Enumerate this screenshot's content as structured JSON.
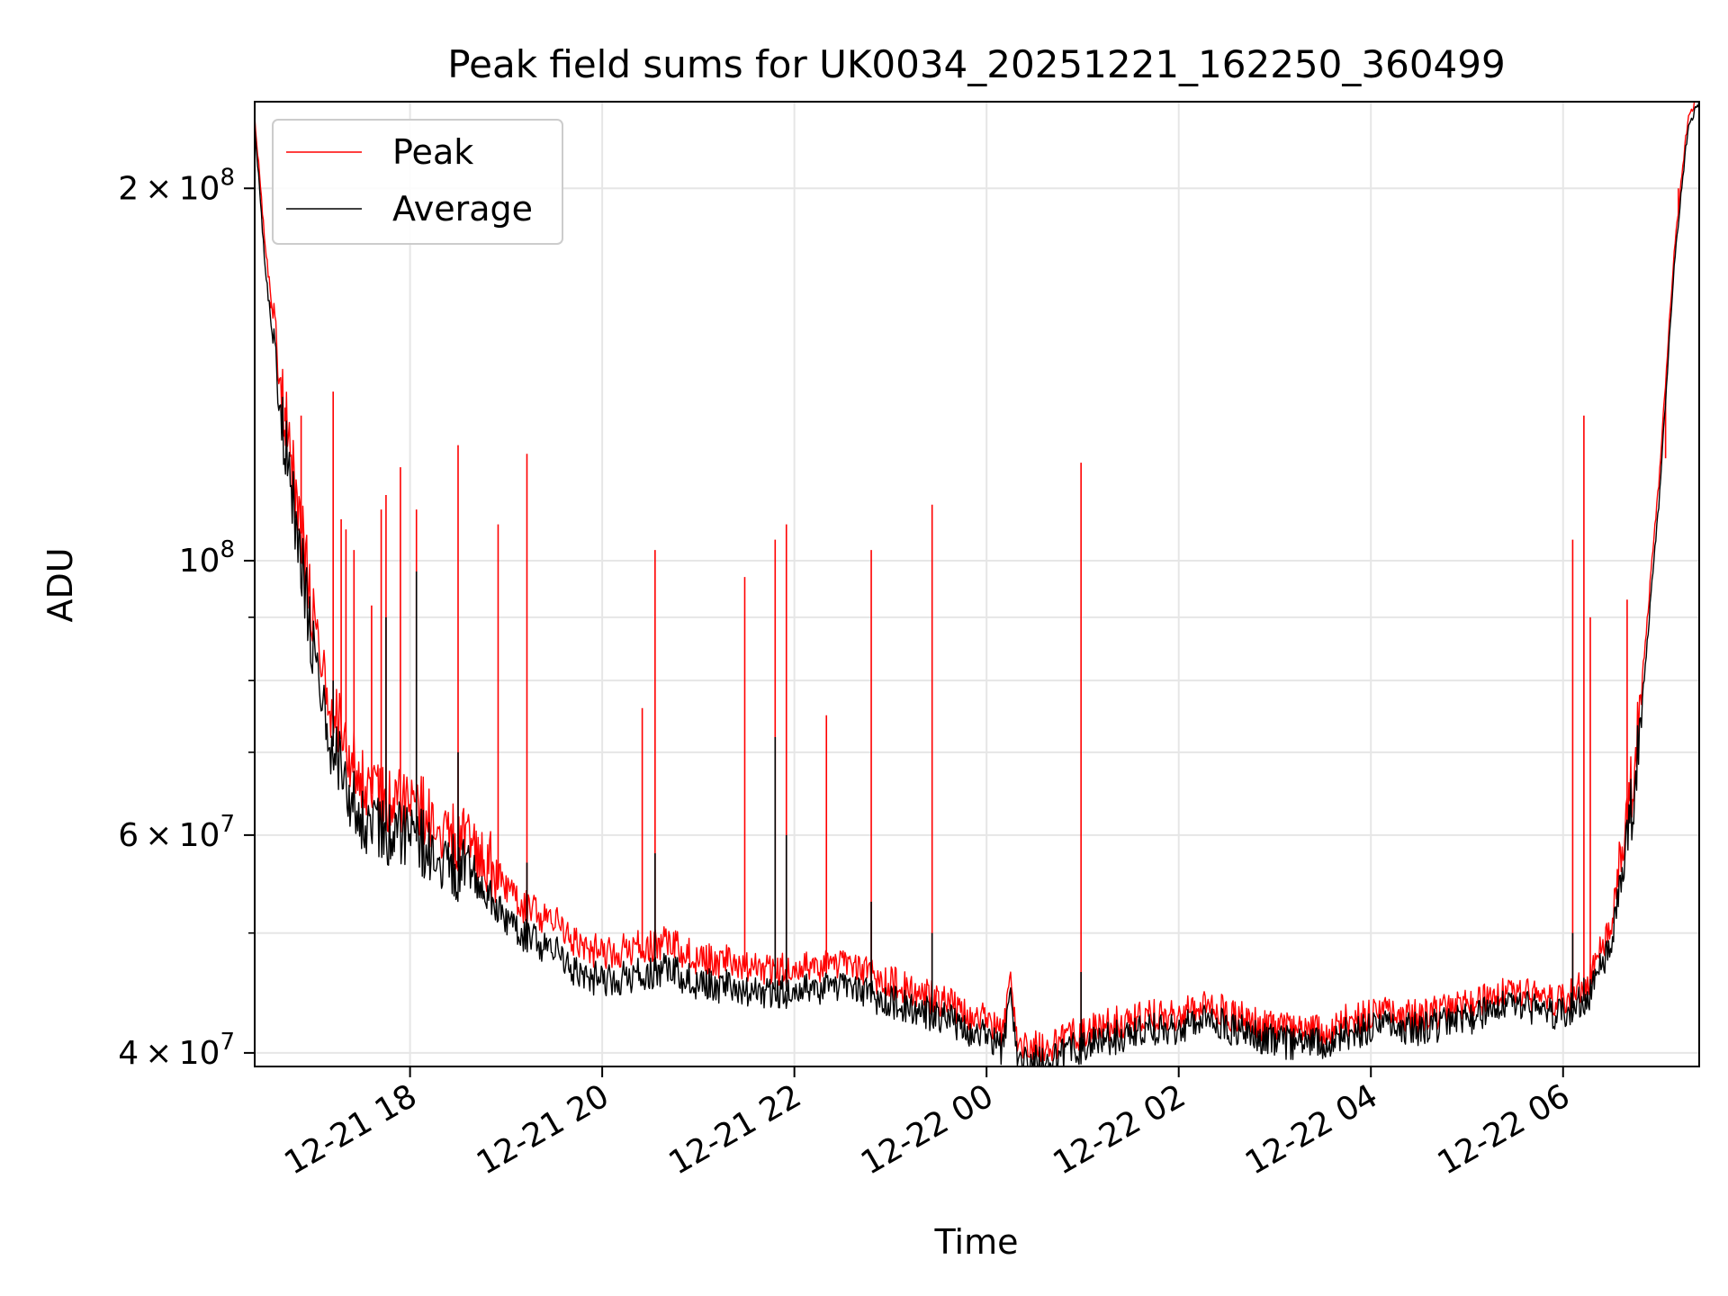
{
  "chart_data": {
    "type": "line",
    "title": "Peak field sums for UK0034_20251221_162250_360499",
    "xlabel": "Time",
    "ylabel": "ADU",
    "yscale": "log",
    "grid": true,
    "legend_position": "top-left",
    "xlim": [
      "2025-12-21 16:23",
      "2025-12-22 07:25"
    ],
    "ylim": [
      39000000,
      235000000
    ],
    "x_ticks": [
      {
        "value": "2025-12-21 18:00",
        "label": "12-21 18"
      },
      {
        "value": "2025-12-21 20:00",
        "label": "12-21 20"
      },
      {
        "value": "2025-12-21 22:00",
        "label": "12-21 22"
      },
      {
        "value": "2025-12-22 00:00",
        "label": "12-22 00"
      },
      {
        "value": "2025-12-22 02:00",
        "label": "12-22 02"
      },
      {
        "value": "2025-12-22 04:00",
        "label": "12-22 04"
      },
      {
        "value": "2025-12-22 06:00",
        "label": "12-22 06"
      }
    ],
    "y_major_ticks": [
      {
        "value": 40000000,
        "mantissa": "4",
        "exponent": "7"
      },
      {
        "value": 60000000,
        "mantissa": "6",
        "exponent": "7"
      },
      {
        "value": 100000000,
        "mantissa": "",
        "exponent": "8"
      },
      {
        "value": 200000000,
        "mantissa": "2",
        "exponent": "8"
      }
    ],
    "y_minor_ticks": [
      50000000,
      70000000,
      80000000,
      90000000
    ],
    "series": [
      {
        "name": "Peak",
        "color": "#ff0000",
        "points": [
          [
            "2025-12-21 16:23",
            225000000
          ],
          [
            "2025-12-21 16:30",
            175000000
          ],
          [
            "2025-12-21 16:40",
            135000000
          ],
          [
            "2025-12-21 16:50",
            110000000
          ],
          [
            "2025-12-21 17:00",
            88000000
          ],
          [
            "2025-12-21 17:10",
            76000000
          ],
          [
            "2025-12-21 17:20",
            70000000
          ],
          [
            "2025-12-21 17:30",
            66000000
          ],
          [
            "2025-12-21 17:40",
            64000000
          ],
          [
            "2025-12-21 17:50",
            63000000
          ],
          [
            "2025-12-21 18:00",
            62000000
          ],
          [
            "2025-12-21 18:10",
            62000000
          ],
          [
            "2025-12-21 18:20",
            60000000
          ],
          [
            "2025-12-21 18:30",
            59000000
          ],
          [
            "2025-12-21 18:40",
            57500000
          ],
          [
            "2025-12-21 18:50",
            56000000
          ],
          [
            "2025-12-21 19:00",
            53500000
          ],
          [
            "2025-12-21 19:10",
            52000000
          ],
          [
            "2025-12-21 19:20",
            51000000
          ],
          [
            "2025-12-21 19:30",
            50500000
          ],
          [
            "2025-12-21 19:40",
            48500000
          ],
          [
            "2025-12-21 20:00",
            47500000
          ],
          [
            "2025-12-21 20:20",
            48000000
          ],
          [
            "2025-12-21 20:40",
            48500000
          ],
          [
            "2025-12-21 21:00",
            47000000
          ],
          [
            "2025-12-21 21:30",
            46500000
          ],
          [
            "2025-12-21 22:00",
            46000000
          ],
          [
            "2025-12-21 22:30",
            46500000
          ],
          [
            "2025-12-21 23:00",
            45000000
          ],
          [
            "2025-12-21 23:30",
            43500000
          ],
          [
            "2025-12-22 00:00",
            42000000
          ],
          [
            "2025-12-22 00:10",
            40500000
          ],
          [
            "2025-12-22 00:15",
            44500000
          ],
          [
            "2025-12-22 00:20",
            40200000
          ],
          [
            "2025-12-22 00:40",
            40000000
          ],
          [
            "2025-12-22 01:00",
            41000000
          ],
          [
            "2025-12-22 01:30",
            42000000
          ],
          [
            "2025-12-22 02:00",
            42500000
          ],
          [
            "2025-12-22 02:15",
            43300000
          ],
          [
            "2025-12-22 02:30",
            42500000
          ],
          [
            "2025-12-22 03:00",
            41200000
          ],
          [
            "2025-12-22 03:30",
            41200000
          ],
          [
            "2025-12-22 04:00",
            42500000
          ],
          [
            "2025-12-22 04:30",
            42200000
          ],
          [
            "2025-12-22 05:00",
            43000000
          ],
          [
            "2025-12-22 05:30",
            44200000
          ],
          [
            "2025-12-22 06:00",
            43500000
          ],
          [
            "2025-12-22 06:15",
            44800000
          ],
          [
            "2025-12-22 06:30",
            50000000
          ],
          [
            "2025-12-22 06:45",
            68000000
          ],
          [
            "2025-12-22 07:00",
            115000000
          ],
          [
            "2025-12-22 07:10",
            180000000
          ],
          [
            "2025-12-22 07:18",
            225000000
          ],
          [
            "2025-12-22 07:25",
            235000000
          ]
        ],
        "spikes": [
          [
            "2025-12-21 16:33",
            160000000
          ],
          [
            "2025-12-21 16:42",
            133000000
          ],
          [
            "2025-12-21 16:52",
            131000000
          ],
          [
            "2025-12-21 17:12",
            137000000
          ],
          [
            "2025-12-21 17:17",
            108000000
          ],
          [
            "2025-12-21 17:20",
            106000000
          ],
          [
            "2025-12-21 17:25",
            102000000
          ],
          [
            "2025-12-21 17:36",
            92000000
          ],
          [
            "2025-12-21 17:42",
            110000000
          ],
          [
            "2025-12-21 17:45",
            113000000
          ],
          [
            "2025-12-21 17:54",
            119000000
          ],
          [
            "2025-12-21 18:04",
            110000000
          ],
          [
            "2025-12-21 18:30",
            124000000
          ],
          [
            "2025-12-21 18:55",
            107000000
          ],
          [
            "2025-12-21 19:13",
            122000000
          ],
          [
            "2025-12-21 20:25",
            76000000
          ],
          [
            "2025-12-21 20:33",
            102000000
          ],
          [
            "2025-12-21 21:29",
            97000000
          ],
          [
            "2025-12-21 21:48",
            104000000
          ],
          [
            "2025-12-21 21:55",
            107000000
          ],
          [
            "2025-12-21 22:20",
            75000000
          ],
          [
            "2025-12-21 22:48",
            102000000
          ],
          [
            "2025-12-21 23:26",
            111000000
          ],
          [
            "2025-12-22 00:59",
            120000000
          ],
          [
            "2025-12-22 06:06",
            104000000
          ],
          [
            "2025-12-22 06:13",
            131000000
          ],
          [
            "2025-12-22 06:17",
            90000000
          ],
          [
            "2025-12-22 06:40",
            93000000
          ],
          [
            "2025-12-22 07:04",
            121000000
          ],
          [
            "2025-12-22 07:12",
            200000000
          ]
        ]
      },
      {
        "name": "Average",
        "color": "#000000",
        "points": [
          [
            "2025-12-21 16:23",
            225000000
          ],
          [
            "2025-12-21 16:30",
            170000000
          ],
          [
            "2025-12-21 16:40",
            130000000
          ],
          [
            "2025-12-21 16:50",
            105000000
          ],
          [
            "2025-12-21 17:00",
            84000000
          ],
          [
            "2025-12-21 17:10",
            72000000
          ],
          [
            "2025-12-21 17:20",
            66000000
          ],
          [
            "2025-12-21 17:30",
            62000000
          ],
          [
            "2025-12-21 17:40",
            61000000
          ],
          [
            "2025-12-21 17:50",
            60000000
          ],
          [
            "2025-12-21 18:00",
            59500000
          ],
          [
            "2025-12-21 18:10",
            59000000
          ],
          [
            "2025-12-21 18:20",
            57500000
          ],
          [
            "2025-12-21 18:30",
            56500000
          ],
          [
            "2025-12-21 18:40",
            55000000
          ],
          [
            "2025-12-21 18:50",
            53500000
          ],
          [
            "2025-12-21 19:00",
            51000000
          ],
          [
            "2025-12-21 19:10",
            50000000
          ],
          [
            "2025-12-21 19:20",
            49000000
          ],
          [
            "2025-12-21 19:30",
            48500000
          ],
          [
            "2025-12-21 19:40",
            46500000
          ],
          [
            "2025-12-21 20:00",
            45800000
          ],
          [
            "2025-12-21 20:20",
            46200000
          ],
          [
            "2025-12-21 20:40",
            46800000
          ],
          [
            "2025-12-21 21:00",
            45500000
          ],
          [
            "2025-12-21 21:30",
            45000000
          ],
          [
            "2025-12-21 22:00",
            44800000
          ],
          [
            "2025-12-21 22:30",
            45200000
          ],
          [
            "2025-12-21 23:00",
            44000000
          ],
          [
            "2025-12-21 23:30",
            42800000
          ],
          [
            "2025-12-22 00:00",
            41300000
          ],
          [
            "2025-12-22 00:10",
            40000000
          ],
          [
            "2025-12-22 00:15",
            43800000
          ],
          [
            "2025-12-22 00:20",
            39700000
          ],
          [
            "2025-12-22 00:40",
            39500000
          ],
          [
            "2025-12-22 01:00",
            40500000
          ],
          [
            "2025-12-22 01:30",
            41500000
          ],
          [
            "2025-12-22 02:00",
            42000000
          ],
          [
            "2025-12-22 02:15",
            42800000
          ],
          [
            "2025-12-22 02:30",
            42000000
          ],
          [
            "2025-12-22 03:00",
            40800000
          ],
          [
            "2025-12-22 03:30",
            40800000
          ],
          [
            "2025-12-22 04:00",
            42000000
          ],
          [
            "2025-12-22 04:30",
            41800000
          ],
          [
            "2025-12-22 05:00",
            42500000
          ],
          [
            "2025-12-22 05:30",
            43800000
          ],
          [
            "2025-12-22 06:00",
            43000000
          ],
          [
            "2025-12-22 06:15",
            44200000
          ],
          [
            "2025-12-22 06:30",
            49000000
          ],
          [
            "2025-12-22 06:45",
            66000000
          ],
          [
            "2025-12-22 07:00",
            112000000
          ],
          [
            "2025-12-22 07:10",
            178000000
          ],
          [
            "2025-12-22 07:18",
            224000000
          ],
          [
            "2025-12-22 07:25",
            235000000
          ]
        ],
        "spikes": [
          [
            "2025-12-21 17:12",
            80000000
          ],
          [
            "2025-12-21 17:45",
            90000000
          ],
          [
            "2025-12-21 18:04",
            98000000
          ],
          [
            "2025-12-21 18:30",
            70000000
          ],
          [
            "2025-12-21 19:13",
            57000000
          ],
          [
            "2025-12-21 20:33",
            58000000
          ],
          [
            "2025-12-21 21:48",
            72000000
          ],
          [
            "2025-12-21 21:55",
            60000000
          ],
          [
            "2025-12-21 22:48",
            53000000
          ],
          [
            "2025-12-21 23:26",
            50000000
          ],
          [
            "2025-12-22 00:59",
            46500000
          ],
          [
            "2025-12-22 06:06",
            50000000
          ],
          [
            "2025-12-22 06:13",
            46000000
          ]
        ]
      }
    ]
  }
}
